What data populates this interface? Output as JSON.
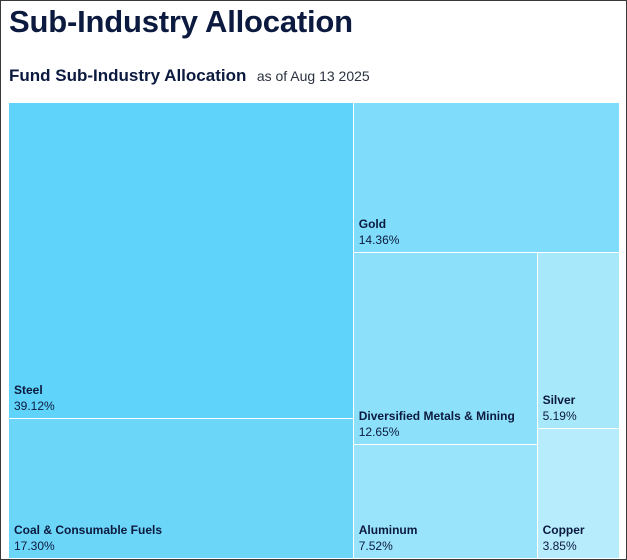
{
  "header": {
    "page_title": "Sub-Industry Allocation",
    "chart_title": "Fund Sub-Industry Allocation",
    "as_of": "as of Aug 13 2025"
  },
  "chart_data": {
    "type": "treemap",
    "title": "Fund Sub-Industry Allocation",
    "unit": "%",
    "items": [
      {
        "name": "Steel",
        "value": 39.12,
        "label": "39.12%",
        "color": "#5fd3f9"
      },
      {
        "name": "Coal & Consumable Fuels",
        "value": 17.3,
        "label": "17.30%",
        "color": "#6cd6f9"
      },
      {
        "name": "Gold",
        "value": 14.36,
        "label": "14.36%",
        "color": "#7fdcfa"
      },
      {
        "name": "Diversified Metals & Mining",
        "value": 12.65,
        "label": "12.65%",
        "color": "#8de0fa"
      },
      {
        "name": "Aluminum",
        "value": 7.52,
        "label": "7.52%",
        "color": "#9ae4fb"
      },
      {
        "name": "Silver",
        "value": 5.19,
        "label": "5.19%",
        "color": "#a8e8fb"
      },
      {
        "name": "Copper",
        "value": 3.85,
        "label": "3.85%",
        "color": "#b6ecfc"
      }
    ]
  }
}
